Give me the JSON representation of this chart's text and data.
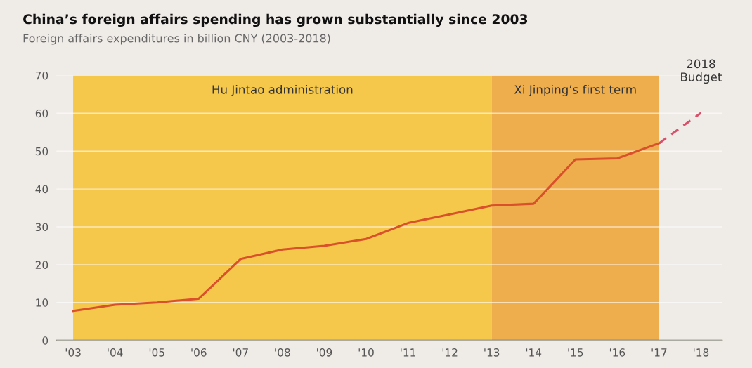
{
  "chart_data": {
    "type": "line",
    "title": "China’s foreign affairs spending has grown substantially since 2003",
    "subtitle": "Foreign affairs expenditures in billion CNY (2003-2018)",
    "series": [
      {
        "x": [
          2003,
          2004,
          2005,
          2006,
          2007,
          2008,
          2009,
          2010,
          2011,
          2012,
          2013,
          2014,
          2015,
          2016,
          2017
        ],
        "values": [
          7.8,
          9.4,
          10.0,
          11.0,
          21.5,
          24.0,
          25.0,
          26.8,
          31.0,
          33.3,
          35.6,
          36.1,
          47.8,
          48.1,
          52.1
        ],
        "color": "#d9502a",
        "line_style": "solid"
      },
      {
        "x": [
          2017,
          2018
        ],
        "values": [
          52.1,
          60.1
        ],
        "color": "#d9506a",
        "line_style": "dashed"
      }
    ],
    "bands": [
      {
        "axis": "x",
        "from": 2003,
        "to": 2013,
        "label": "Hu Jintao administration",
        "color": "#f5c84c"
      },
      {
        "axis": "x",
        "from": 2013,
        "to": 2017,
        "label": "Xi Jinping’s first term",
        "color": "#eeae4e"
      }
    ],
    "annotations": [
      {
        "text": "2018\nBudget",
        "x": 2018,
        "y": 60.1
      }
    ],
    "xlim": [
      2002.6,
      2018.5
    ],
    "xticks": [
      {
        "value": 2003,
        "label": "'03"
      },
      {
        "value": 2004,
        "label": "'04"
      },
      {
        "value": 2005,
        "label": "'05"
      },
      {
        "value": 2006,
        "label": "'06"
      },
      {
        "value": 2007,
        "label": "'07"
      },
      {
        "value": 2008,
        "label": "'08"
      },
      {
        "value": 2009,
        "label": "'09"
      },
      {
        "value": 2010,
        "label": "'10"
      },
      {
        "value": 2011,
        "label": "'11"
      },
      {
        "value": 2012,
        "label": "'12"
      },
      {
        "value": 2013,
        "label": "'13"
      },
      {
        "value": 2014,
        "label": "'14"
      },
      {
        "value": 2015,
        "label": "'15"
      },
      {
        "value": 2016,
        "label": "'16"
      },
      {
        "value": 2017,
        "label": "'17"
      },
      {
        "value": 2018,
        "label": "'18"
      }
    ],
    "ylim": [
      0,
      70
    ],
    "yticks": [
      0,
      10,
      20,
      30,
      40,
      50,
      60,
      70
    ],
    "grid": "y",
    "marker": "none"
  }
}
